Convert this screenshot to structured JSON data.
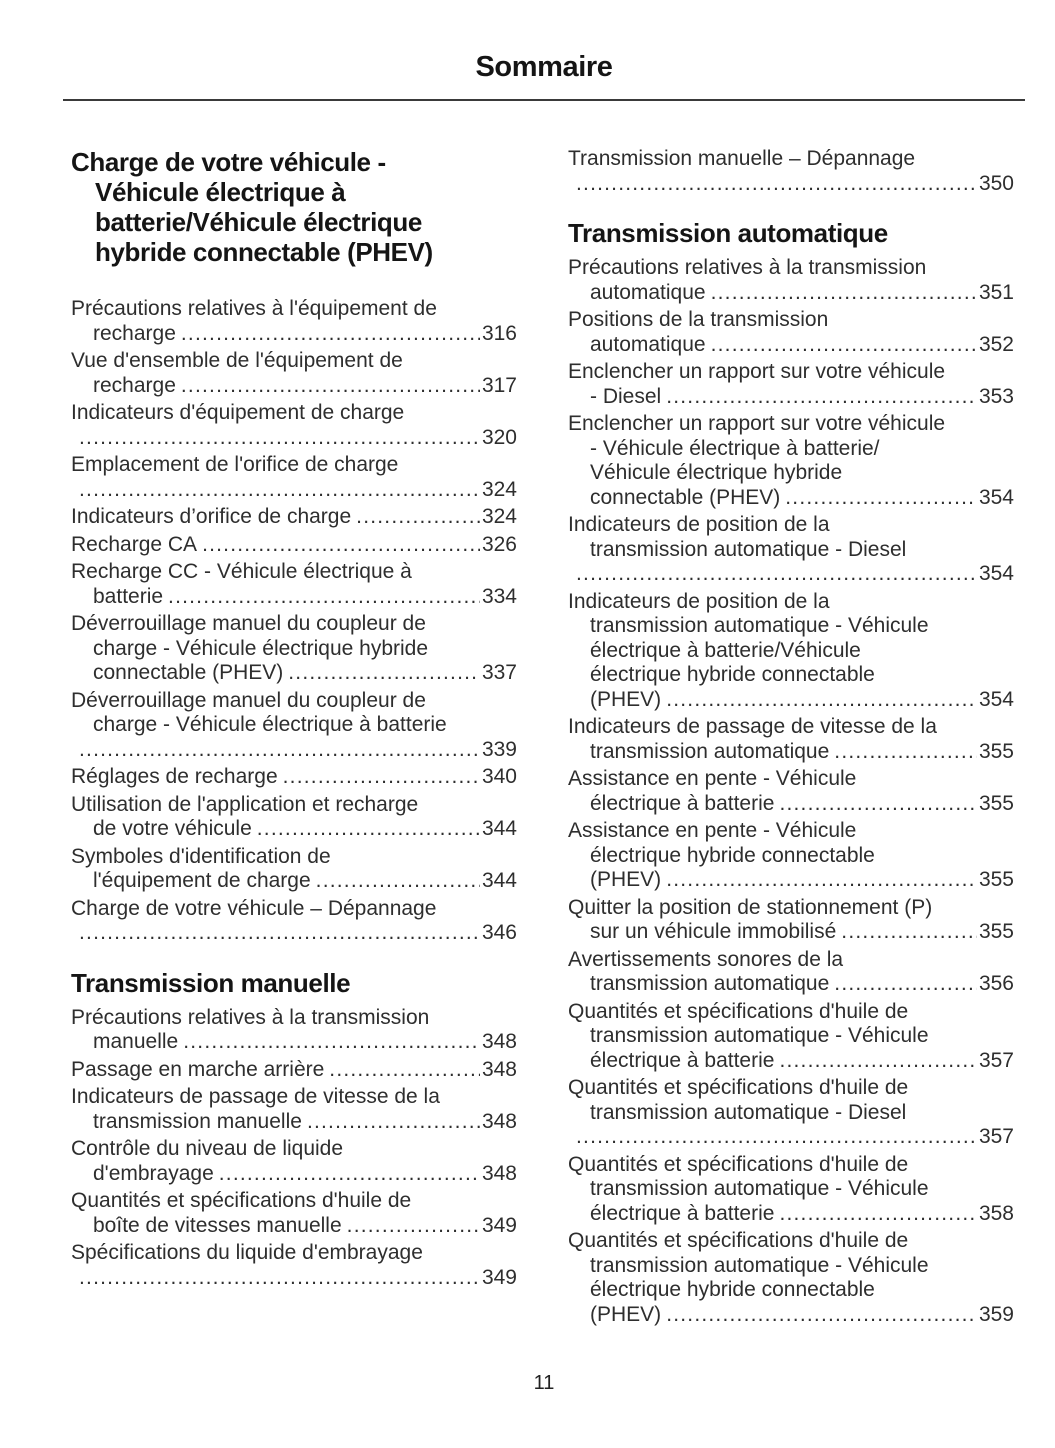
{
  "page_title": "Sommaire",
  "page_number": "11",
  "colors": {
    "text": "#2e2e2e",
    "heading": "#151515",
    "rule": "#3a3a3a",
    "background": "#ffffff"
  },
  "toc": {
    "left": [
      {
        "type": "chapter",
        "lines": [
          "Charge de votre véhicule -",
          "Véhicule électrique à",
          "batterie/Véhicule électrique",
          "hybride connectable (PHEV)"
        ]
      },
      {
        "type": "entry",
        "pre": [
          "Précautions relatives à l'équipement de"
        ],
        "last": "recharge",
        "page": "316"
      },
      {
        "type": "entry",
        "pre": [
          "Vue d'ensemble de l'équipement de"
        ],
        "last": "recharge",
        "page": "317"
      },
      {
        "type": "entry",
        "pre": [
          "Indicateurs d'équipement de charge"
        ],
        "last": "",
        "page": "320"
      },
      {
        "type": "entry",
        "pre": [
          "Emplacement de l'orifice de charge"
        ],
        "last": "",
        "page": "324"
      },
      {
        "type": "entry",
        "pre": [],
        "last": "Indicateurs d’orifice de charge",
        "page": "324"
      },
      {
        "type": "entry",
        "pre": [],
        "last": "Recharge CA",
        "page": "326"
      },
      {
        "type": "entry",
        "pre": [
          "Recharge CC - Véhicule électrique à"
        ],
        "last": "batterie",
        "page": "334"
      },
      {
        "type": "entry",
        "pre": [
          "Déverrouillage manuel du coupleur de",
          "charge - Véhicule électrique hybride"
        ],
        "last": "connectable (PHEV)",
        "page": "337"
      },
      {
        "type": "entry",
        "pre": [
          "Déverrouillage manuel du coupleur de",
          "charge - Véhicule électrique à batterie"
        ],
        "last": "",
        "page": "339"
      },
      {
        "type": "entry",
        "pre": [],
        "last": "Réglages de recharge",
        "page": "340"
      },
      {
        "type": "entry",
        "pre": [
          "Utilisation de l'application et recharge"
        ],
        "last": "de votre véhicule",
        "page": "344"
      },
      {
        "type": "entry",
        "pre": [
          "Symboles d'identification de"
        ],
        "last": "l'équipement de charge",
        "page": "344"
      },
      {
        "type": "entry",
        "pre": [
          "Charge de votre véhicule – Dépannage"
        ],
        "last": "",
        "page": "346"
      },
      {
        "type": "heading",
        "lines": [
          "Transmission manuelle"
        ]
      },
      {
        "type": "entry",
        "pre": [
          "Précautions relatives à la transmission"
        ],
        "last": "manuelle ",
        "page": "348"
      },
      {
        "type": "entry",
        "pre": [],
        "last": "Passage en marche arrière",
        "page": "348"
      },
      {
        "type": "entry",
        "pre": [
          "Indicateurs de passage de vitesse de la"
        ],
        "last": "transmission manuelle",
        "page": "348"
      },
      {
        "type": "entry",
        "pre": [
          "Contrôle du niveau de liquide"
        ],
        "last": "d'embrayage",
        "page": "348"
      },
      {
        "type": "entry",
        "pre": [
          "Quantités et spécifications d'huile de"
        ],
        "last": "boîte de vitesses manuelle",
        "page": "349"
      },
      {
        "type": "entry",
        "pre": [
          "Spécifications du liquide d'embrayage"
        ],
        "last": "",
        "page": "349"
      }
    ],
    "right": [
      {
        "type": "entry",
        "pre": [
          "Transmission manuelle – Dépannage"
        ],
        "last": "",
        "page": "350"
      },
      {
        "type": "heading",
        "lines": [
          "Transmission automatique"
        ]
      },
      {
        "type": "entry",
        "pre": [
          "Précautions relatives à la transmission"
        ],
        "last": "automatique",
        "page": "351"
      },
      {
        "type": "entry",
        "pre": [
          "Positions de la transmission"
        ],
        "last": "automatique",
        "page": "352"
      },
      {
        "type": "entry",
        "pre": [
          "Enclencher un rapport sur votre véhicule"
        ],
        "last": "- Diesel",
        "page": "353"
      },
      {
        "type": "entry",
        "pre": [
          "Enclencher un rapport sur votre véhicule",
          "- Véhicule électrique à batterie/",
          "Véhicule électrique hybride"
        ],
        "last": "connectable (PHEV)",
        "page": "354"
      },
      {
        "type": "entry",
        "pre": [
          "Indicateurs de position de la",
          "transmission automatique - Diesel"
        ],
        "last": "",
        "page": "354"
      },
      {
        "type": "entry",
        "pre": [
          "Indicateurs de position de la",
          "transmission automatique - Véhicule",
          "électrique à batterie/Véhicule",
          "électrique hybride connectable"
        ],
        "last": "(PHEV) ",
        "page": "354"
      },
      {
        "type": "entry",
        "pre": [
          "Indicateurs de passage de vitesse de la"
        ],
        "last": "transmission automatique",
        "page": "355"
      },
      {
        "type": "entry",
        "pre": [
          "Assistance en pente - Véhicule"
        ],
        "last": "électrique à batterie",
        "page": "355"
      },
      {
        "type": "entry",
        "pre": [
          "Assistance en pente - Véhicule",
          "électrique hybride connectable"
        ],
        "last": "(PHEV) ",
        "page": "355"
      },
      {
        "type": "entry",
        "pre": [
          "Quitter la position de stationnement (P)"
        ],
        "last": "sur un véhicule immobilisé",
        "page": "355"
      },
      {
        "type": "entry",
        "pre": [
          "Avertissements sonores de la"
        ],
        "last": "transmission automatique",
        "page": "356"
      },
      {
        "type": "entry",
        "pre": [
          "Quantités et spécifications d'huile de",
          "transmission automatique - Véhicule"
        ],
        "last": "électrique à batterie",
        "page": "357"
      },
      {
        "type": "entry",
        "pre": [
          "Quantités et spécifications d'huile de",
          "transmission automatique - Diesel"
        ],
        "last": "",
        "page": "357"
      },
      {
        "type": "entry",
        "pre": [
          "Quantités et spécifications d'huile de",
          "transmission automatique - Véhicule"
        ],
        "last": "électrique à batterie",
        "page": "358"
      },
      {
        "type": "entry",
        "pre": [
          "Quantités et spécifications d'huile de",
          "transmission automatique - Véhicule",
          "électrique hybride connectable"
        ],
        "last": "(PHEV) ",
        "page": "359"
      }
    ]
  }
}
